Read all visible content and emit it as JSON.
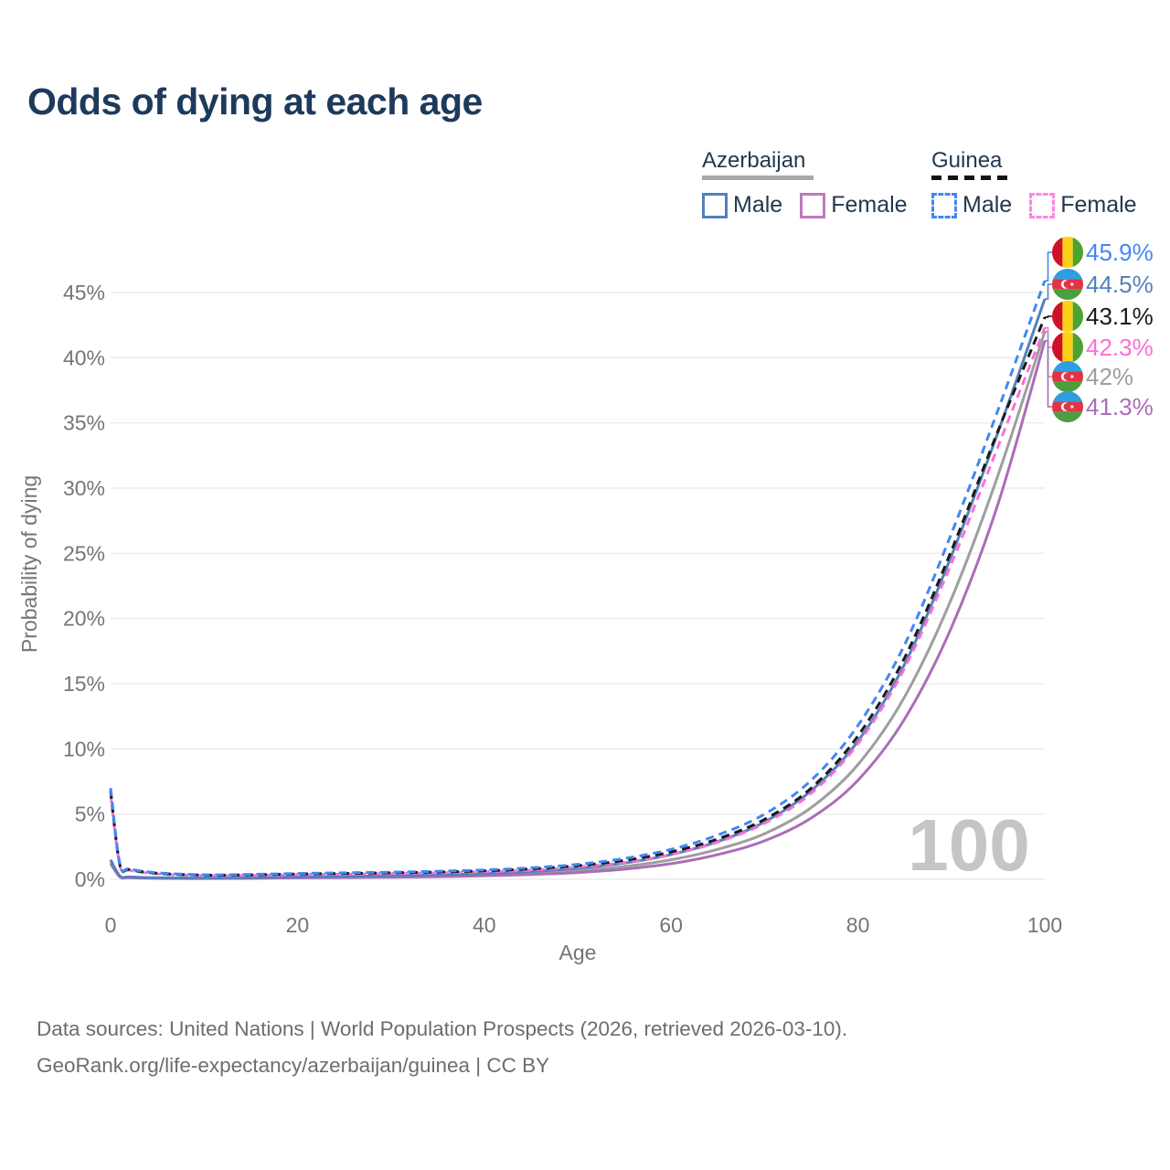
{
  "page": {
    "title": "Odds of dying at each age",
    "watermark": "100",
    "sources_line1": "Data sources: United Nations | World Population Prospects (2026, retrieved 2026-03-10).",
    "sources_line2": "GeoRank.org/life-expectancy/azerbaijan/guinea | CC BY"
  },
  "legend": {
    "groups": [
      {
        "country": "Azerbaijan",
        "line_style": "solid",
        "underline_color": "#a8a8a8",
        "items": [
          {
            "label": "Male",
            "color": "#5480bb"
          },
          {
            "label": "Female",
            "color": "#bd7abd"
          }
        ]
      },
      {
        "country": "Guinea",
        "line_style": "dashed",
        "underline_color": "#141414",
        "items": [
          {
            "label": "Male",
            "color": "#4387f4"
          },
          {
            "label": "Female",
            "color": "#ff85e3"
          }
        ]
      }
    ]
  },
  "colors": {
    "title_text": "#1d3a5c",
    "axis_text": "#757575",
    "gridline": "#ebebeb",
    "watermark": "#c5c5c5",
    "source_text": "#6d6d6d",
    "flag_guinea": [
      "#CE1126",
      "#FCD116",
      "#4DA32F"
    ],
    "flag_azerbaijan": [
      "#2D9FE0",
      "#E23345",
      "#4C9E3F"
    ]
  },
  "chart_data": {
    "type": "line",
    "title": "Odds of dying at each age",
    "xlabel": "Age",
    "ylabel": "Probability of dying",
    "xlim": [
      0,
      100
    ],
    "ylim_percent": [
      0,
      45
    ],
    "x_ticks": [
      0,
      20,
      40,
      60,
      80,
      100
    ],
    "y_ticks_percent": [
      0,
      5,
      10,
      15,
      20,
      25,
      30,
      35,
      40,
      45
    ],
    "grid": "horizontal-only",
    "legend_position": "top-right",
    "ages": [
      0,
      1,
      2,
      5,
      10,
      15,
      20,
      25,
      30,
      35,
      40,
      45,
      50,
      55,
      60,
      65,
      70,
      75,
      80,
      85,
      90,
      95,
      100
    ],
    "series": [
      {
        "id": "azerbaijan-both",
        "name": "Azerbaijan",
        "country": "Azerbaijan",
        "sex": "both",
        "line_style": "solid",
        "color": "#9e9e9e",
        "values_percent": [
          1.35,
          0.22,
          0.15,
          0.1,
          0.08,
          0.1,
          0.14,
          0.17,
          0.21,
          0.27,
          0.35,
          0.47,
          0.66,
          0.98,
          1.5,
          2.3,
          3.5,
          5.5,
          8.8,
          14.0,
          21.5,
          31.0,
          42.0
        ]
      },
      {
        "id": "azerbaijan-female",
        "name": "Azerbaijan Female",
        "country": "Azerbaijan",
        "sex": "female",
        "line_style": "solid",
        "color": "#ab6db8",
        "values_percent": [
          1.2,
          0.19,
          0.13,
          0.08,
          0.06,
          0.08,
          0.11,
          0.13,
          0.16,
          0.2,
          0.27,
          0.37,
          0.52,
          0.78,
          1.2,
          1.9,
          2.95,
          4.7,
          7.6,
          12.3,
          19.3,
          28.8,
          41.3
        ]
      },
      {
        "id": "azerbaijan-male",
        "name": "Azerbaijan Male",
        "country": "Azerbaijan",
        "sex": "male",
        "line_style": "solid",
        "color": "#5480bb",
        "values_percent": [
          1.5,
          0.25,
          0.18,
          0.12,
          0.1,
          0.13,
          0.18,
          0.22,
          0.28,
          0.35,
          0.45,
          0.6,
          0.85,
          1.25,
          1.9,
          2.9,
          4.4,
          6.8,
          10.6,
          16.5,
          24.8,
          34.3,
          44.5
        ]
      },
      {
        "id": "guinea-female",
        "name": "Guinea Female",
        "country": "Guinea",
        "sex": "female",
        "line_style": "dashed",
        "color": "#fb6fd8",
        "values_percent": [
          6.5,
          1.05,
          0.7,
          0.42,
          0.29,
          0.3,
          0.36,
          0.4,
          0.44,
          0.5,
          0.58,
          0.7,
          0.95,
          1.3,
          1.9,
          2.85,
          4.3,
          6.6,
          10.4,
          16.2,
          24.2,
          33.2,
          42.3
        ]
      },
      {
        "id": "guinea-both",
        "name": "Guinea",
        "country": "Guinea",
        "sex": "both",
        "line_style": "dashed",
        "color": "#1a1a1a",
        "values_percent": [
          6.8,
          1.1,
          0.75,
          0.46,
          0.32,
          0.34,
          0.41,
          0.45,
          0.5,
          0.56,
          0.65,
          0.8,
          1.05,
          1.45,
          2.1,
          3.1,
          4.6,
          7.0,
          11.0,
          17.0,
          25.2,
          34.4,
          43.1
        ]
      },
      {
        "id": "guinea-male",
        "name": "Guinea Male",
        "country": "Guinea",
        "sex": "male",
        "line_style": "dashed",
        "color": "#4387f4",
        "values_percent": [
          7.0,
          1.15,
          0.8,
          0.5,
          0.35,
          0.38,
          0.45,
          0.5,
          0.55,
          0.62,
          0.72,
          0.88,
          1.15,
          1.6,
          2.3,
          3.4,
          5.0,
          7.6,
          11.8,
          18.0,
          26.5,
          36.0,
          45.9
        ]
      }
    ],
    "end_labels": [
      {
        "series_id": "guinea-male",
        "text": "45.9%",
        "value_percent": 45.9,
        "flag": "guinea",
        "color": "#4387f4"
      },
      {
        "series_id": "azerbaijan-male",
        "text": "44.5%",
        "value_percent": 44.5,
        "flag": "azerbaijan",
        "color": "#5480bb"
      },
      {
        "series_id": "guinea-both",
        "text": "43.1%",
        "value_percent": 43.1,
        "flag": "guinea",
        "color": "#1a1a1a"
      },
      {
        "series_id": "guinea-female",
        "text": "42.3%",
        "value_percent": 42.3,
        "flag": "guinea",
        "color": "#fb6fd8"
      },
      {
        "series_id": "azerbaijan-both",
        "text": "42%",
        "value_percent": 42.0,
        "flag": "azerbaijan",
        "color": "#9e9e9e"
      },
      {
        "series_id": "azerbaijan-female",
        "text": "41.3%",
        "value_percent": 41.3,
        "flag": "azerbaijan",
        "color": "#ab6db8"
      }
    ],
    "annotations": [
      {
        "text": "100",
        "role": "hovered-age-watermark"
      }
    ]
  }
}
